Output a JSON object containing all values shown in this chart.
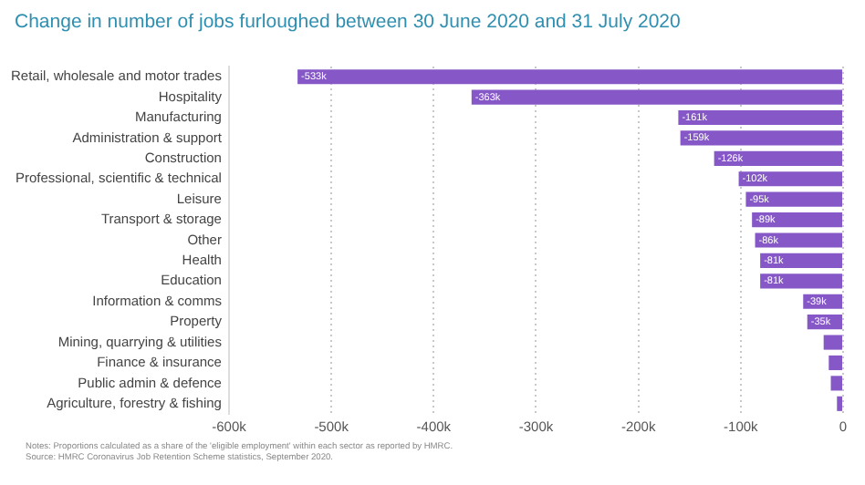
{
  "chart_data": {
    "type": "bar",
    "orientation": "horizontal",
    "title": "Change in number of jobs furloughed between 30 June 2020 and 31 July 2020",
    "categories": [
      "Retail, wholesale and motor trades",
      "Hospitality",
      "Manufacturing",
      "Administration & support",
      "Construction",
      "Professional, scientific & technical",
      "Leisure",
      "Transport & storage",
      "Other",
      "Health",
      "Education",
      "Information & comms",
      "Property",
      "Mining, quarrying & utilities",
      "Finance & insurance",
      "Public admin & defence",
      "Agriculture, forestry & fishing"
    ],
    "values": [
      -533,
      -363,
      -161,
      -159,
      -126,
      -102,
      -95,
      -89,
      -86,
      -81,
      -81,
      -39,
      -35,
      -19,
      -14,
      -12,
      -6
    ],
    "value_labels": [
      "-533k",
      "-363k",
      "-161k",
      "-159k",
      "-126k",
      "-102k",
      "-95k",
      "-89k",
      "-86k",
      "-81k",
      "-81k",
      "-39k",
      "-35k",
      null,
      null,
      null,
      null
    ],
    "color": "#8557c7",
    "xlim": [
      -600,
      0
    ],
    "xticks": [
      {
        "value": -600,
        "label": "-600k"
      },
      {
        "value": -500,
        "label": "-500k"
      },
      {
        "value": -400,
        "label": "-400k"
      },
      {
        "value": -300,
        "label": "-300k"
      },
      {
        "value": -200,
        "label": "-200k"
      },
      {
        "value": -100,
        "label": "-100k"
      },
      0
    ],
    "grid": "x",
    "legend": false,
    "annotations": [
      "Notes: Proportions calculated as a share of the 'eligible employment' within each sector as reported by HMRC.",
      "Source: HMRC Coronavirus Job Retention Scheme statistics, September 2020."
    ]
  }
}
